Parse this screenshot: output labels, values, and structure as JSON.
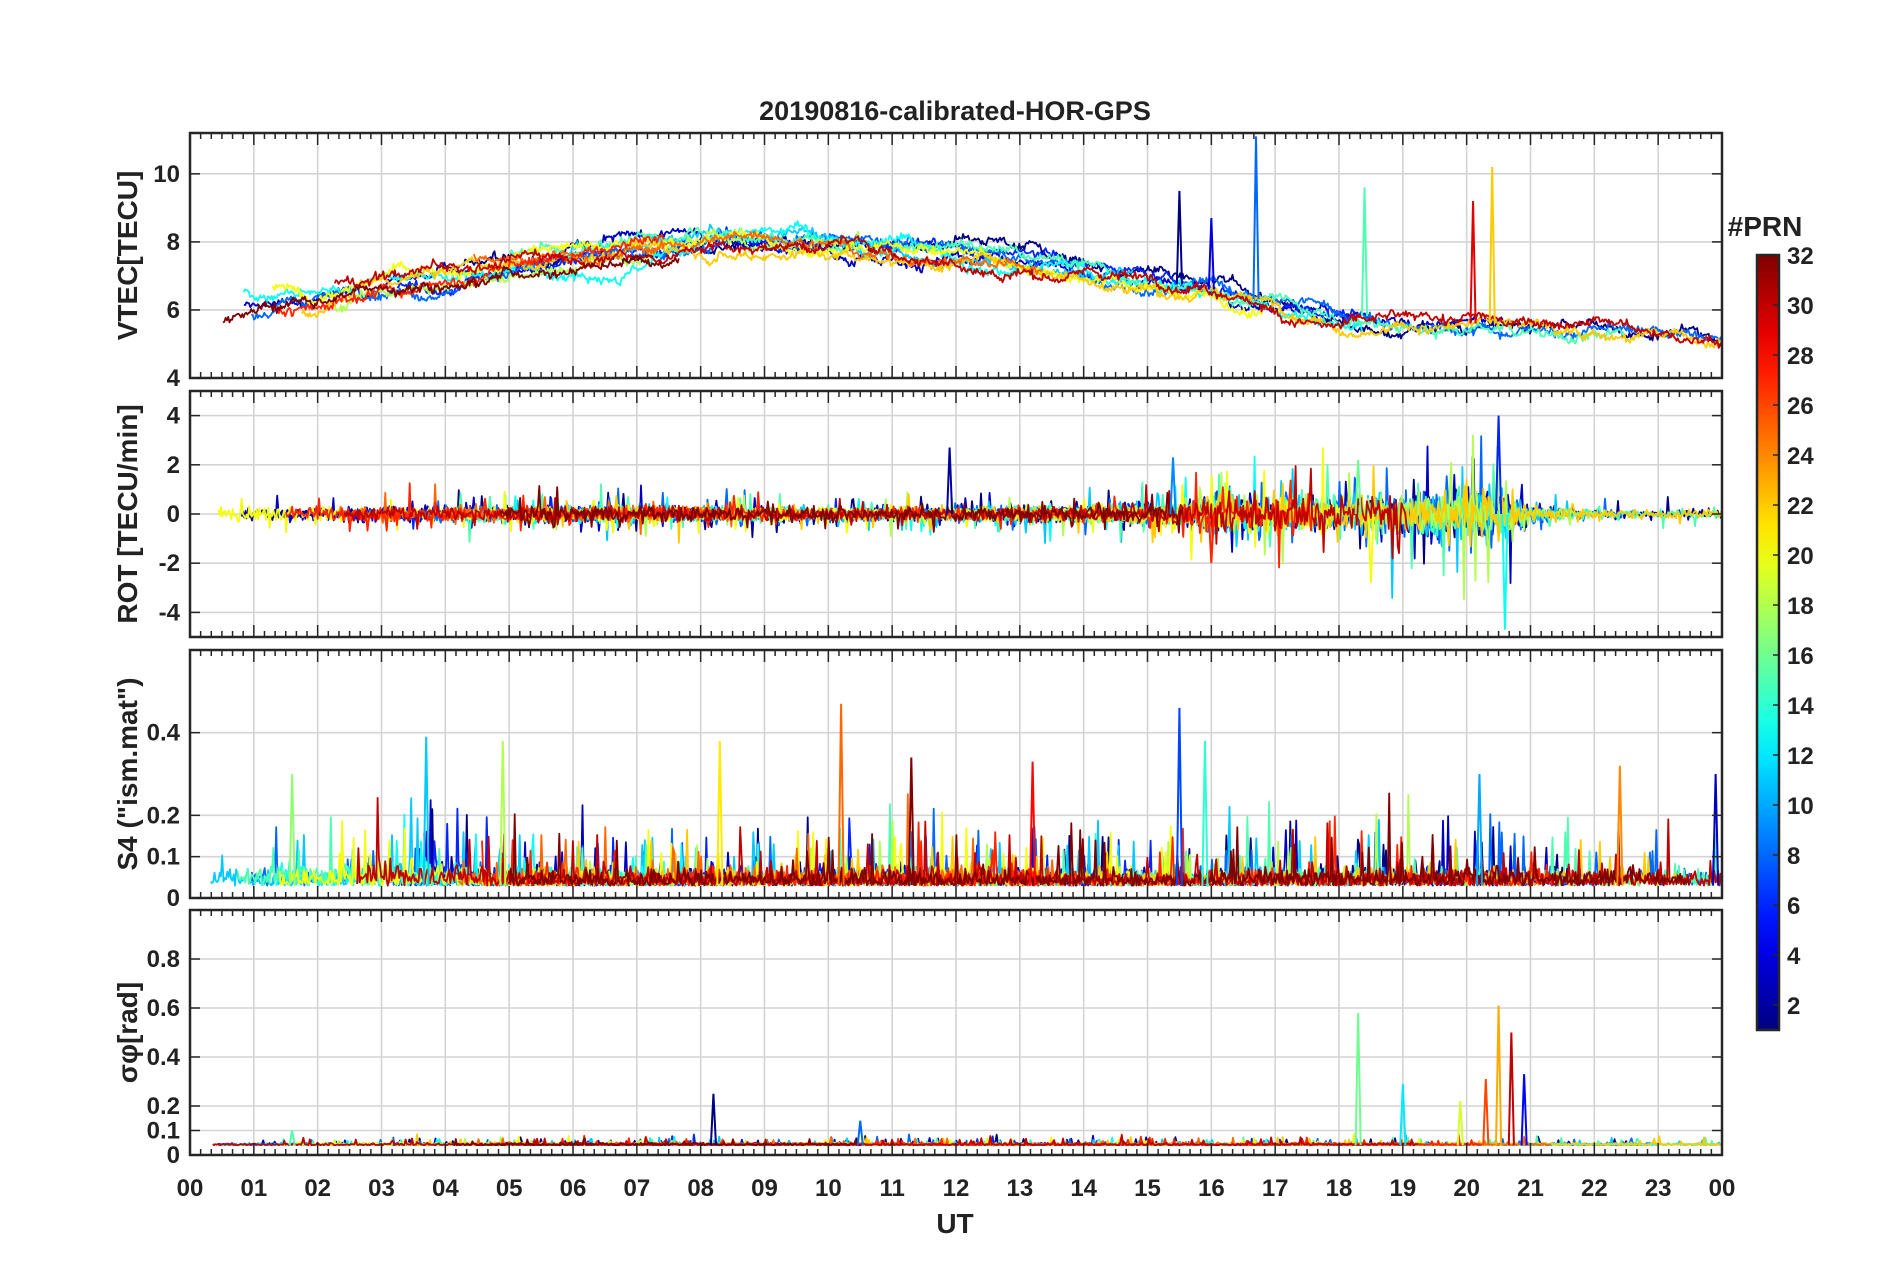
{
  "chart_data": {
    "type": "line",
    "title": "20190816-calibrated-HOR-GPS",
    "xlabel": "UT",
    "x_ticks": [
      "00",
      "01",
      "02",
      "03",
      "04",
      "05",
      "06",
      "07",
      "08",
      "09",
      "10",
      "11",
      "12",
      "13",
      "14",
      "15",
      "16",
      "17",
      "18",
      "19",
      "20",
      "21",
      "22",
      "23",
      "00"
    ],
    "xlim": [
      0,
      24
    ],
    "grid": true,
    "colorbar": {
      "title": "#PRN",
      "range": [
        1,
        32
      ],
      "ticks": [
        2,
        4,
        6,
        8,
        10,
        12,
        14,
        16,
        18,
        20,
        22,
        24,
        26,
        28,
        30,
        32
      ],
      "colormap": "jet"
    },
    "panels": [
      {
        "id": "vtec",
        "ylabel": "VTEC[TECU]",
        "ylim": [
          4,
          11.2
        ],
        "y_ticks": [
          4,
          6,
          8,
          10
        ],
        "y_tick_labels": [
          "4",
          "6",
          "8",
          "10"
        ],
        "features": {
          "baseline": [
            [
              0,
              6.0
            ],
            [
              1,
              6.2
            ],
            [
              2,
              6.4
            ],
            [
              3,
              6.8
            ],
            [
              4,
              7.0
            ],
            [
              5,
              7.3
            ],
            [
              6,
              7.5
            ],
            [
              7,
              7.8
            ],
            [
              8,
              8.0
            ],
            [
              9,
              8.1
            ],
            [
              10,
              8.0
            ],
            [
              11,
              7.8
            ],
            [
              12,
              7.7
            ],
            [
              13,
              7.5
            ],
            [
              14,
              7.2
            ],
            [
              15,
              6.9
            ],
            [
              16,
              6.6
            ],
            [
              17,
              6.2
            ],
            [
              18,
              5.9
            ],
            [
              19,
              5.7
            ],
            [
              20,
              5.6
            ],
            [
              21,
              5.6
            ],
            [
              22,
              5.5
            ],
            [
              23,
              5.3
            ],
            [
              24,
              5.0
            ]
          ],
          "spread": 1.2,
          "spikes": [
            [
              15.5,
              9.5
            ],
            [
              16.7,
              11.1
            ],
            [
              18.4,
              9.6
            ],
            [
              20.4,
              10.2
            ],
            [
              20.1,
              9.2
            ],
            [
              16.0,
              8.7
            ]
          ]
        }
      },
      {
        "id": "rot",
        "ylabel": "ROT [TECU/min]",
        "ylim": [
          -5,
          5
        ],
        "y_ticks": [
          -4,
          -2,
          0,
          2,
          4
        ],
        "y_tick_labels": [
          "-4",
          "-2",
          "0",
          "2",
          "4"
        ],
        "features": {
          "baseline": [
            [
              0,
              0
            ],
            [
              24,
              0
            ]
          ],
          "noise_amplitude": [
            [
              0,
              0.5
            ],
            [
              4,
              0.7
            ],
            [
              8,
              0.6
            ],
            [
              12,
              0.5
            ],
            [
              15.5,
              0.9
            ],
            [
              16,
              1.5
            ],
            [
              18,
              1.4
            ],
            [
              19,
              1.8
            ],
            [
              20.5,
              2.5
            ],
            [
              21,
              0.8
            ],
            [
              22,
              0.4
            ],
            [
              24,
              0.4
            ]
          ],
          "spikes": [
            [
              20.5,
              4.0
            ],
            [
              20.6,
              -4.7
            ],
            [
              18.5,
              -2.8
            ],
            [
              16.0,
              -2.0
            ],
            [
              11.9,
              2.7
            ],
            [
              15.4,
              2.3
            ],
            [
              18.3,
              2.2
            ]
          ]
        }
      },
      {
        "id": "s4",
        "ylabel": "S4 (\"ism.mat\")",
        "ylim": [
          0,
          0.6
        ],
        "y_ticks": [
          0,
          0.1,
          0.2,
          0.4
        ],
        "y_tick_labels": [
          "0",
          "0.1",
          "0.2",
          "0.4"
        ],
        "features": {
          "baseline": [
            [
              0,
              0.03
            ],
            [
              24,
              0.03
            ]
          ],
          "noise_amplitude": [
            [
              0,
              0.08
            ],
            [
              3.5,
              0.14
            ],
            [
              5,
              0.09
            ],
            [
              9,
              0.08
            ],
            [
              11,
              0.1
            ],
            [
              15,
              0.08
            ],
            [
              18,
              0.1
            ],
            [
              20,
              0.1
            ],
            [
              24,
              0.08
            ]
          ],
          "spikes": [
            [
              3.7,
              0.39
            ],
            [
              4.9,
              0.38
            ],
            [
              10.2,
              0.47
            ],
            [
              11.3,
              0.34
            ],
            [
              15.5,
              0.46
            ],
            [
              15.9,
              0.38
            ],
            [
              8.3,
              0.38
            ],
            [
              13.2,
              0.33
            ],
            [
              23.9,
              0.3
            ],
            [
              20.2,
              0.3
            ],
            [
              1.6,
              0.3
            ],
            [
              22.4,
              0.32
            ]
          ]
        }
      },
      {
        "id": "sigma_phi",
        "ylabel": "σφ[rad]",
        "ylim": [
          0,
          1.0
        ],
        "y_ticks": [
          0,
          0.1,
          0.2,
          0.4,
          0.6,
          0.8
        ],
        "y_tick_labels": [
          "0",
          "0.1",
          "0.2",
          "0.4",
          "0.6",
          "0.8"
        ],
        "features": {
          "baseline": [
            [
              0,
              0.04
            ],
            [
              24,
              0.04
            ]
          ],
          "noise_amplitude": [
            [
              0,
              0.02
            ],
            [
              24,
              0.02
            ]
          ],
          "spikes": [
            [
              18.3,
              0.58
            ],
            [
              20.5,
              0.61
            ],
            [
              20.7,
              0.5
            ],
            [
              20.9,
              0.33
            ],
            [
              19.0,
              0.29
            ],
            [
              19.9,
              0.22
            ],
            [
              20.3,
              0.31
            ],
            [
              8.2,
              0.25
            ],
            [
              10.5,
              0.14
            ],
            [
              1.6,
              0.1
            ]
          ]
        }
      }
    ]
  }
}
